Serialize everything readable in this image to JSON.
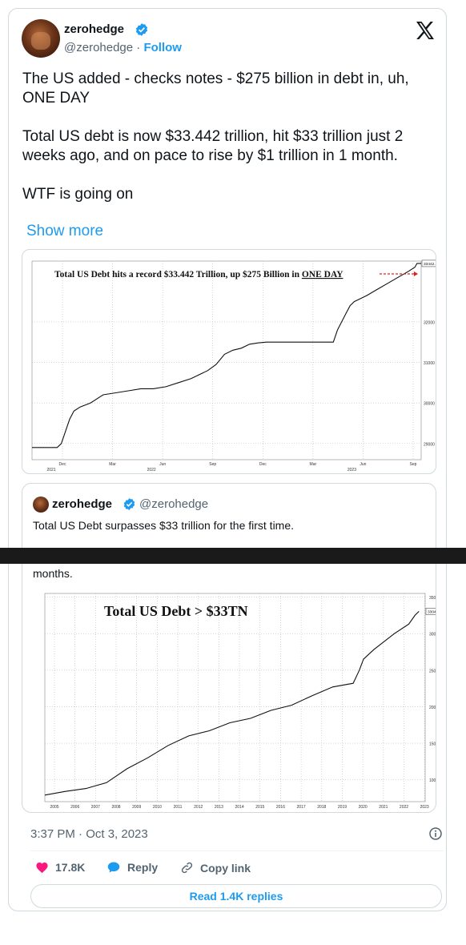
{
  "author": {
    "name": "zerohedge",
    "handle": "@zerohedge",
    "separator": "·",
    "follow_label": "Follow"
  },
  "tweet": {
    "text": "The US added - checks notes - $275 billion in debt in, uh, ONE DAY\n\nTotal US debt is now $33.442 trillion, hit $33 trillion just 2 weeks ago, and on pace to rise by $1 trillion in 1 month.\n\nWTF is going on",
    "show_more": "Show more"
  },
  "icons": {
    "verified": "verified-badge-icon",
    "x_logo": "x-logo-icon",
    "info": "info-icon",
    "like": "heart-icon",
    "reply": "reply-bubble-icon",
    "copy_link": "link-icon"
  },
  "colors": {
    "accent": "#1d9bf0",
    "like": "#f91880",
    "muted": "#536471"
  },
  "quote": {
    "name": "zerohedge",
    "handle": "@zerohedge",
    "text": "Total US Debt surpasses $33 trillion for the first time.",
    "tail_text": "months."
  },
  "timestamp": "3:37 PM · Oct 3, 2023",
  "actions": {
    "likes": "17.8K",
    "reply": "Reply",
    "copy_link": "Copy link"
  },
  "read_replies": "Read 1.4K replies",
  "chart_data": [
    {
      "type": "line",
      "title": "Total US Debt hits a record $33.442 Trillion, up $275 Billion in ",
      "title_emph": "ONE DAY",
      "last_value_label": "33442.15",
      "yticks": [
        29000,
        30000,
        31000,
        32000
      ],
      "ylim": [
        28600,
        33500
      ],
      "xticks": [
        {
          "label": "Dec",
          "sub": "2021"
        },
        {
          "label": "Mar",
          "sub": ""
        },
        {
          "label": "Jun",
          "sub": "2022"
        },
        {
          "label": "Sep",
          "sub": ""
        },
        {
          "label": "Dec",
          "sub": ""
        },
        {
          "label": "Mar",
          "sub": ""
        },
        {
          "label": "Jun",
          "sub": "2023"
        },
        {
          "label": "Sep",
          "sub": ""
        }
      ],
      "x": [
        0,
        12,
        14,
        16,
        18,
        20,
        23,
        28,
        34,
        40,
        46,
        52,
        58,
        64,
        70,
        76,
        80,
        84,
        88,
        92,
        96,
        100,
        104,
        108,
        112,
        116,
        120,
        124,
        128,
        132,
        136,
        140,
        144,
        146,
        148,
        150,
        152,
        154,
        156,
        160,
        165,
        170,
        175,
        180,
        183,
        184,
        185,
        186
      ],
      "y": [
        28900,
        28900,
        29000,
        29300,
        29600,
        29800,
        29900,
        30000,
        30200,
        30250,
        30300,
        30350,
        30350,
        30400,
        30500,
        30600,
        30700,
        30800,
        30950,
        31200,
        31300,
        31350,
        31450,
        31480,
        31500,
        31500,
        31500,
        31500,
        31500,
        31500,
        31500,
        31500,
        31500,
        31800,
        32000,
        32200,
        32400,
        32500,
        32550,
        32650,
        32800,
        32950,
        33100,
        33250,
        33350,
        33442,
        33442,
        33442
      ],
      "x_max": 186
    },
    {
      "type": "line",
      "title": "Total US Debt > $33TN",
      "last_value_label": "33044.86",
      "yticks": [
        10000,
        15000,
        20000,
        25000,
        30000,
        35000
      ],
      "ylim": [
        7000,
        35500
      ],
      "xticks": [
        "2005",
        "2006",
        "2007",
        "2008",
        "2009",
        "2010",
        "2011",
        "2012",
        "2013",
        "2014",
        "2015",
        "2016",
        "2017",
        "2018",
        "2019",
        "2020",
        "2021",
        "2022",
        "2023"
      ],
      "x": [
        2005,
        2006,
        2007,
        2008,
        2009,
        2010,
        2011,
        2012,
        2013,
        2014,
        2015,
        2016,
        2017,
        2018,
        2019,
        2020,
        2020.3,
        2020.5,
        2021,
        2022,
        2022.7,
        2023,
        2023.2
      ],
      "y": [
        7900,
        8400,
        8800,
        9600,
        11500,
        13000,
        14700,
        16000,
        16700,
        17800,
        18400,
        19500,
        20200,
        21500,
        22700,
        23200,
        25000,
        26500,
        27800,
        30000,
        31300,
        32500,
        33044
      ],
      "x_range": [
        2005,
        2023.5
      ]
    }
  ]
}
